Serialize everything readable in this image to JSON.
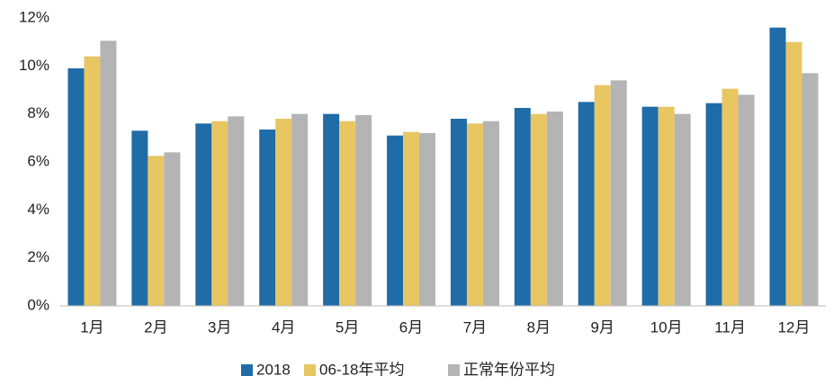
{
  "chart_data": {
    "type": "bar",
    "categories": [
      "1月",
      "2月",
      "3月",
      "4月",
      "5月",
      "6月",
      "7月",
      "8月",
      "9月",
      "10月",
      "11月",
      "12月"
    ],
    "series": [
      {
        "name": "2018",
        "color": "#1f6ca8",
        "values": [
          9.9,
          7.3,
          7.6,
          7.35,
          8.0,
          7.1,
          7.8,
          8.25,
          8.5,
          8.3,
          8.45,
          11.6
        ]
      },
      {
        "name": "06-18年平均",
        "color": "#e8c662",
        "values": [
          10.4,
          6.25,
          7.7,
          7.8,
          7.7,
          7.25,
          7.6,
          8.0,
          9.2,
          8.3,
          9.05,
          11.0
        ]
      },
      {
        "name": "正常年份平均",
        "color": "#b4b4b4",
        "values": [
          11.05,
          6.4,
          7.9,
          8.0,
          7.95,
          7.2,
          7.7,
          8.1,
          9.4,
          8.0,
          8.8,
          9.7
        ]
      }
    ],
    "ylim": [
      0,
      12
    ],
    "yticks": [
      {
        "value": 0,
        "label": "0%"
      },
      {
        "value": 2,
        "label": "2%"
      },
      {
        "value": 4,
        "label": "4%"
      },
      {
        "value": 6,
        "label": "6%"
      },
      {
        "value": 8,
        "label": "8%"
      },
      {
        "value": 10,
        "label": "10%"
      },
      {
        "value": 12,
        "label": "12%"
      }
    ],
    "grid": false,
    "legend": "bottom"
  }
}
